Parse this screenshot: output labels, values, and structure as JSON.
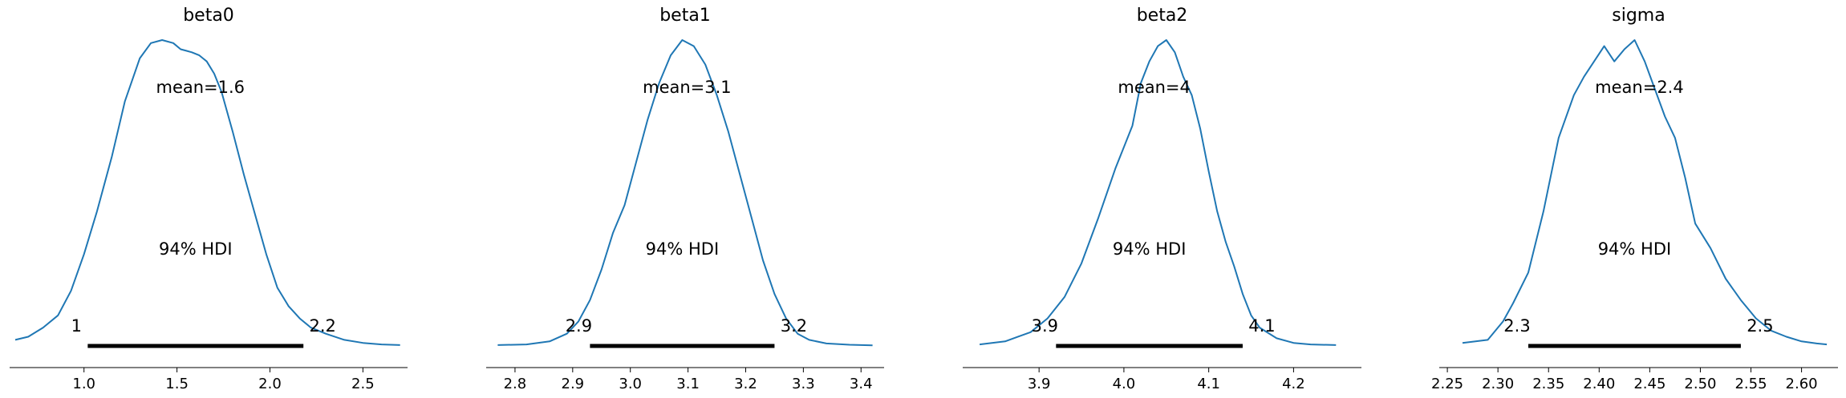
{
  "chart_data": [
    {
      "type": "line",
      "title": "beta0",
      "mean_label": "mean=1.6",
      "hdi_label": "94% HDI",
      "hdi": [
        1.02,
        2.18
      ],
      "hdi_labels": [
        "1",
        "2.2"
      ],
      "xlim": [
        0.6,
        2.74
      ],
      "ticks": [
        1.0,
        1.5,
        2.0,
        2.5
      ],
      "tick_labels": [
        "1.0",
        "1.5",
        "2.0",
        "2.5"
      ],
      "density": {
        "x": [
          0.63,
          0.7,
          0.78,
          0.86,
          0.93,
          1.0,
          1.07,
          1.15,
          1.22,
          1.3,
          1.36,
          1.42,
          1.48,
          1.52,
          1.55,
          1.58,
          1.62,
          1.66,
          1.7,
          1.74,
          1.8,
          1.86,
          1.92,
          1.98,
          2.04,
          2.1,
          2.16,
          2.22,
          2.3,
          2.4,
          2.5,
          2.6,
          2.7
        ],
        "y": [
          0.02,
          0.03,
          0.06,
          0.1,
          0.18,
          0.3,
          0.44,
          0.62,
          0.8,
          0.94,
          0.99,
          1.0,
          0.99,
          0.97,
          0.965,
          0.96,
          0.95,
          0.93,
          0.89,
          0.83,
          0.7,
          0.56,
          0.43,
          0.3,
          0.19,
          0.13,
          0.09,
          0.06,
          0.04,
          0.02,
          0.01,
          0.005,
          0.003
        ]
      }
    },
    {
      "type": "line",
      "title": "beta1",
      "mean_label": "mean=3.1",
      "hdi_label": "94% HDI",
      "hdi": [
        2.93,
        3.25
      ],
      "hdi_labels": [
        "2.9",
        "3.2"
      ],
      "xlim": [
        2.75,
        3.44
      ],
      "ticks": [
        2.8,
        2.9,
        3.0,
        3.1,
        3.2,
        3.3,
        3.4
      ],
      "tick_labels": [
        "2.8",
        "2.9",
        "3.0",
        "3.1",
        "3.2",
        "3.3",
        "3.4"
      ],
      "density": {
        "x": [
          2.77,
          2.82,
          2.86,
          2.89,
          2.91,
          2.93,
          2.95,
          2.97,
          2.99,
          3.01,
          3.03,
          3.05,
          3.07,
          3.09,
          3.11,
          3.13,
          3.15,
          3.17,
          3.19,
          3.21,
          3.23,
          3.25,
          3.27,
          3.29,
          3.31,
          3.34,
          3.38,
          3.42
        ],
        "y": [
          0.003,
          0.005,
          0.015,
          0.04,
          0.08,
          0.15,
          0.25,
          0.37,
          0.46,
          0.6,
          0.74,
          0.86,
          0.95,
          1.0,
          0.98,
          0.92,
          0.82,
          0.7,
          0.56,
          0.42,
          0.28,
          0.17,
          0.09,
          0.04,
          0.02,
          0.008,
          0.004,
          0.002
        ]
      }
    },
    {
      "type": "line",
      "title": "beta2",
      "mean_label": "mean=4",
      "hdi_label": "94% HDI",
      "hdi": [
        3.92,
        4.14
      ],
      "hdi_labels": [
        "3.9",
        "4.1"
      ],
      "xlim": [
        3.81,
        4.28
      ],
      "ticks": [
        3.9,
        4.0,
        4.1,
        4.2
      ],
      "tick_labels": [
        "3.9",
        "4.0",
        "4.1",
        "4.2"
      ],
      "density": {
        "x": [
          3.83,
          3.86,
          3.89,
          3.91,
          3.93,
          3.95,
          3.97,
          3.99,
          4.01,
          4.02,
          4.03,
          4.04,
          4.05,
          4.06,
          4.07,
          4.08,
          4.09,
          4.1,
          4.11,
          4.12,
          4.13,
          4.14,
          4.15,
          4.16,
          4.18,
          4.2,
          4.22,
          4.25
        ],
        "y": [
          0.005,
          0.015,
          0.045,
          0.09,
          0.16,
          0.27,
          0.42,
          0.58,
          0.72,
          0.86,
          0.93,
          0.98,
          1.0,
          0.96,
          0.88,
          0.82,
          0.71,
          0.57,
          0.44,
          0.34,
          0.26,
          0.17,
          0.1,
          0.06,
          0.025,
          0.01,
          0.005,
          0.003
        ]
      }
    },
    {
      "type": "line",
      "title": "sigma",
      "mean_label": "mean=2.4",
      "hdi_label": "94% HDI",
      "hdi": [
        2.33,
        2.54
      ],
      "hdi_labels": [
        "2.3",
        "2.5"
      ],
      "xlim": [
        2.242,
        2.636
      ],
      "ticks": [
        2.25,
        2.3,
        2.35,
        2.4,
        2.45,
        2.5,
        2.55,
        2.6
      ],
      "tick_labels": [
        "2.25",
        "2.30",
        "2.35",
        "2.40",
        "2.45",
        "2.50",
        "2.55",
        "2.60"
      ],
      "density": {
        "x": [
          2.265,
          2.29,
          2.305,
          2.315,
          2.33,
          2.345,
          2.36,
          2.375,
          2.385,
          2.395,
          2.405,
          2.415,
          2.425,
          2.435,
          2.445,
          2.455,
          2.465,
          2.475,
          2.485,
          2.495,
          2.51,
          2.525,
          2.54,
          2.555,
          2.57,
          2.585,
          2.6,
          2.615,
          2.625
        ],
        "y": [
          0.01,
          0.02,
          0.08,
          0.14,
          0.24,
          0.44,
          0.68,
          0.82,
          0.88,
          0.93,
          0.98,
          0.93,
          0.97,
          1.0,
          0.93,
          0.84,
          0.75,
          0.68,
          0.55,
          0.4,
          0.32,
          0.22,
          0.15,
          0.09,
          0.05,
          0.03,
          0.015,
          0.008,
          0.005
        ]
      }
    }
  ]
}
